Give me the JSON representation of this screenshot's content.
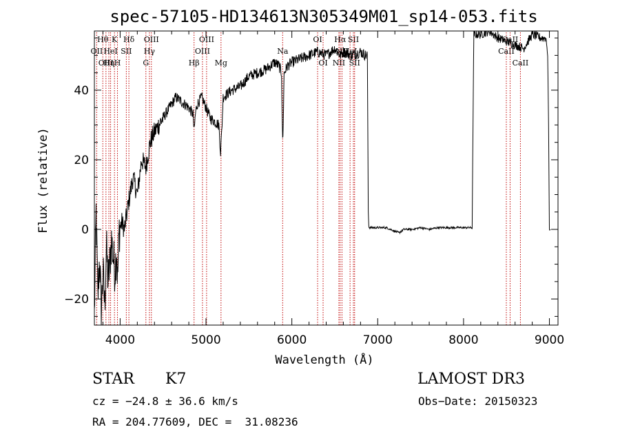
{
  "chart_data": {
    "type": "line",
    "title": "spec-57105-HD134613N305349M01_sp14-053.fits",
    "xlabel": "Wavelength (Å)",
    "ylabel": "Flux (relative)",
    "xlim": [
      3700,
      9100
    ],
    "ylim": [
      -27.5,
      57
    ],
    "xticks": [
      4000,
      5000,
      6000,
      7000,
      8000,
      9000
    ],
    "yticks": [
      -20,
      0,
      20,
      40
    ],
    "grid": false,
    "series": [
      {
        "x": [
          3700,
          3720,
          3740,
          3760,
          3780,
          3800,
          3820,
          3840,
          3860,
          3880,
          3900,
          3920,
          3940,
          3960,
          3970,
          3990,
          4020,
          4050,
          4100,
          4150,
          4200,
          4250,
          4300,
          4350,
          4400,
          4450,
          4500,
          4550,
          4600,
          4650,
          4700,
          4750,
          4800,
          4850,
          4861,
          4880,
          4900,
          4950,
          5000,
          5050,
          5100,
          5150,
          5170,
          5183,
          5200,
          5250,
          5300,
          5400,
          5500,
          5600,
          5700,
          5800,
          5850,
          5880,
          5890,
          5896,
          5910,
          5950,
          6000,
          6100,
          6200,
          6300,
          6400,
          6500,
          6563,
          6600,
          6700,
          6800,
          6860,
          6880,
          6890,
          6900,
          7000,
          7100,
          7200,
          7250,
          7300,
          7400,
          7500,
          7600,
          7700,
          7800,
          7900,
          8000,
          8100,
          8110,
          8120,
          8200,
          8300,
          8400,
          8500,
          8600,
          8700,
          8800,
          8900,
          8960,
          8980,
          8990,
          9000,
          9010
        ],
        "y": [
          -25,
          5,
          -20,
          -8,
          -24,
          -12,
          -22,
          -5,
          -15,
          -10,
          -3,
          -8,
          -12,
          -5,
          -15,
          0,
          2,
          0,
          8,
          15,
          10,
          20,
          18,
          25,
          28,
          30,
          32,
          34,
          36,
          38,
          37,
          36,
          35,
          33,
          28,
          34,
          36,
          38,
          35,
          32,
          31,
          30,
          22,
          28,
          38,
          39,
          40,
          41,
          44,
          45,
          46,
          48,
          47,
          45,
          28,
          26,
          45,
          47,
          48,
          49,
          50,
          51,
          50,
          52,
          50,
          51,
          50,
          51,
          50,
          50,
          5,
          0.5,
          0.5,
          0.5,
          -0.5,
          -1,
          0,
          0,
          0.5,
          0,
          0.5,
          0.5,
          0.5,
          0.5,
          0.5,
          30,
          56,
          56,
          57,
          55,
          54,
          53,
          52,
          56,
          55,
          55,
          50,
          30,
          0,
          0
        ]
      }
    ],
    "lines": [
      {
        "x": 3727,
        "labels": [
          "OII"
        ],
        "pos": "mid"
      },
      {
        "x": 3798,
        "labels": [
          "Hθ"
        ],
        "pos": "top"
      },
      {
        "x": 3835,
        "labels": [
          "OIII"
        ],
        "pos": "bottom"
      },
      {
        "x": 3869,
        "labels": [
          "Hη"
        ],
        "pos": "bottom"
      },
      {
        "x": 3889,
        "labels": [
          "HeI"
        ],
        "pos": "mid"
      },
      {
        "x": 3934,
        "labels": [
          "K"
        ],
        "pos": "top"
      },
      {
        "x": 3969,
        "labels": [
          "H"
        ],
        "pos": "bottom"
      },
      {
        "x": 4072,
        "labels": [
          "SII"
        ],
        "pos": "mid"
      },
      {
        "x": 4102,
        "labels": [
          "Hδ"
        ],
        "pos": "top"
      },
      {
        "x": 4300,
        "labels": [
          "G"
        ],
        "pos": "bottom"
      },
      {
        "x": 4341,
        "labels": [
          "Hγ"
        ],
        "pos": "mid"
      },
      {
        "x": 4364,
        "labels": [
          "OIII"
        ],
        "pos": "top"
      },
      {
        "x": 4861,
        "labels": [
          "Hβ"
        ],
        "pos": "bottom"
      },
      {
        "x": 4959,
        "labels": [
          "OIII"
        ],
        "pos": "mid"
      },
      {
        "x": 5007,
        "labels": [
          "OIII"
        ],
        "pos": "top"
      },
      {
        "x": 5175,
        "labels": [
          "Mg"
        ],
        "pos": "bottom"
      },
      {
        "x": 5893,
        "labels": [
          "Na"
        ],
        "pos": "mid"
      },
      {
        "x": 6300,
        "labels": [
          "OI"
        ],
        "pos": "top"
      },
      {
        "x": 6364,
        "labels": [
          "OI"
        ],
        "pos": "bottom"
      },
      {
        "x": 6548,
        "labels": [
          "NII"
        ],
        "pos": "bottom"
      },
      {
        "x": 6563,
        "labels": [
          "Hα"
        ],
        "pos": "top"
      },
      {
        "x": 6584,
        "labels": [
          "NII"
        ],
        "pos": "mid"
      },
      {
        "x": 6678,
        "labels": [
          "HeI"
        ],
        "pos": "mid"
      },
      {
        "x": 6717,
        "labels": [
          "SII"
        ],
        "pos": "top"
      },
      {
        "x": 6731,
        "labels": [
          "SII"
        ],
        "pos": "bottom"
      },
      {
        "x": 8498,
        "labels": [
          "CaII"
        ],
        "pos": "mid"
      },
      {
        "x": 8542,
        "labels": [
          "CaII"
        ],
        "pos": "top"
      },
      {
        "x": 8662,
        "labels": [
          "CaII"
        ],
        "pos": "bottom"
      }
    ],
    "line_color": "#c00000",
    "spectrum_color": "#000000"
  },
  "info": {
    "class_label": "STAR",
    "subclass": "K7",
    "survey": "LAMOST DR3",
    "cz": "cz = −24.8 ± 36.6 km/s",
    "obs_date": "Obs−Date: 20150323",
    "radec": "RA = 204.77609, DEC =  31.08236"
  }
}
